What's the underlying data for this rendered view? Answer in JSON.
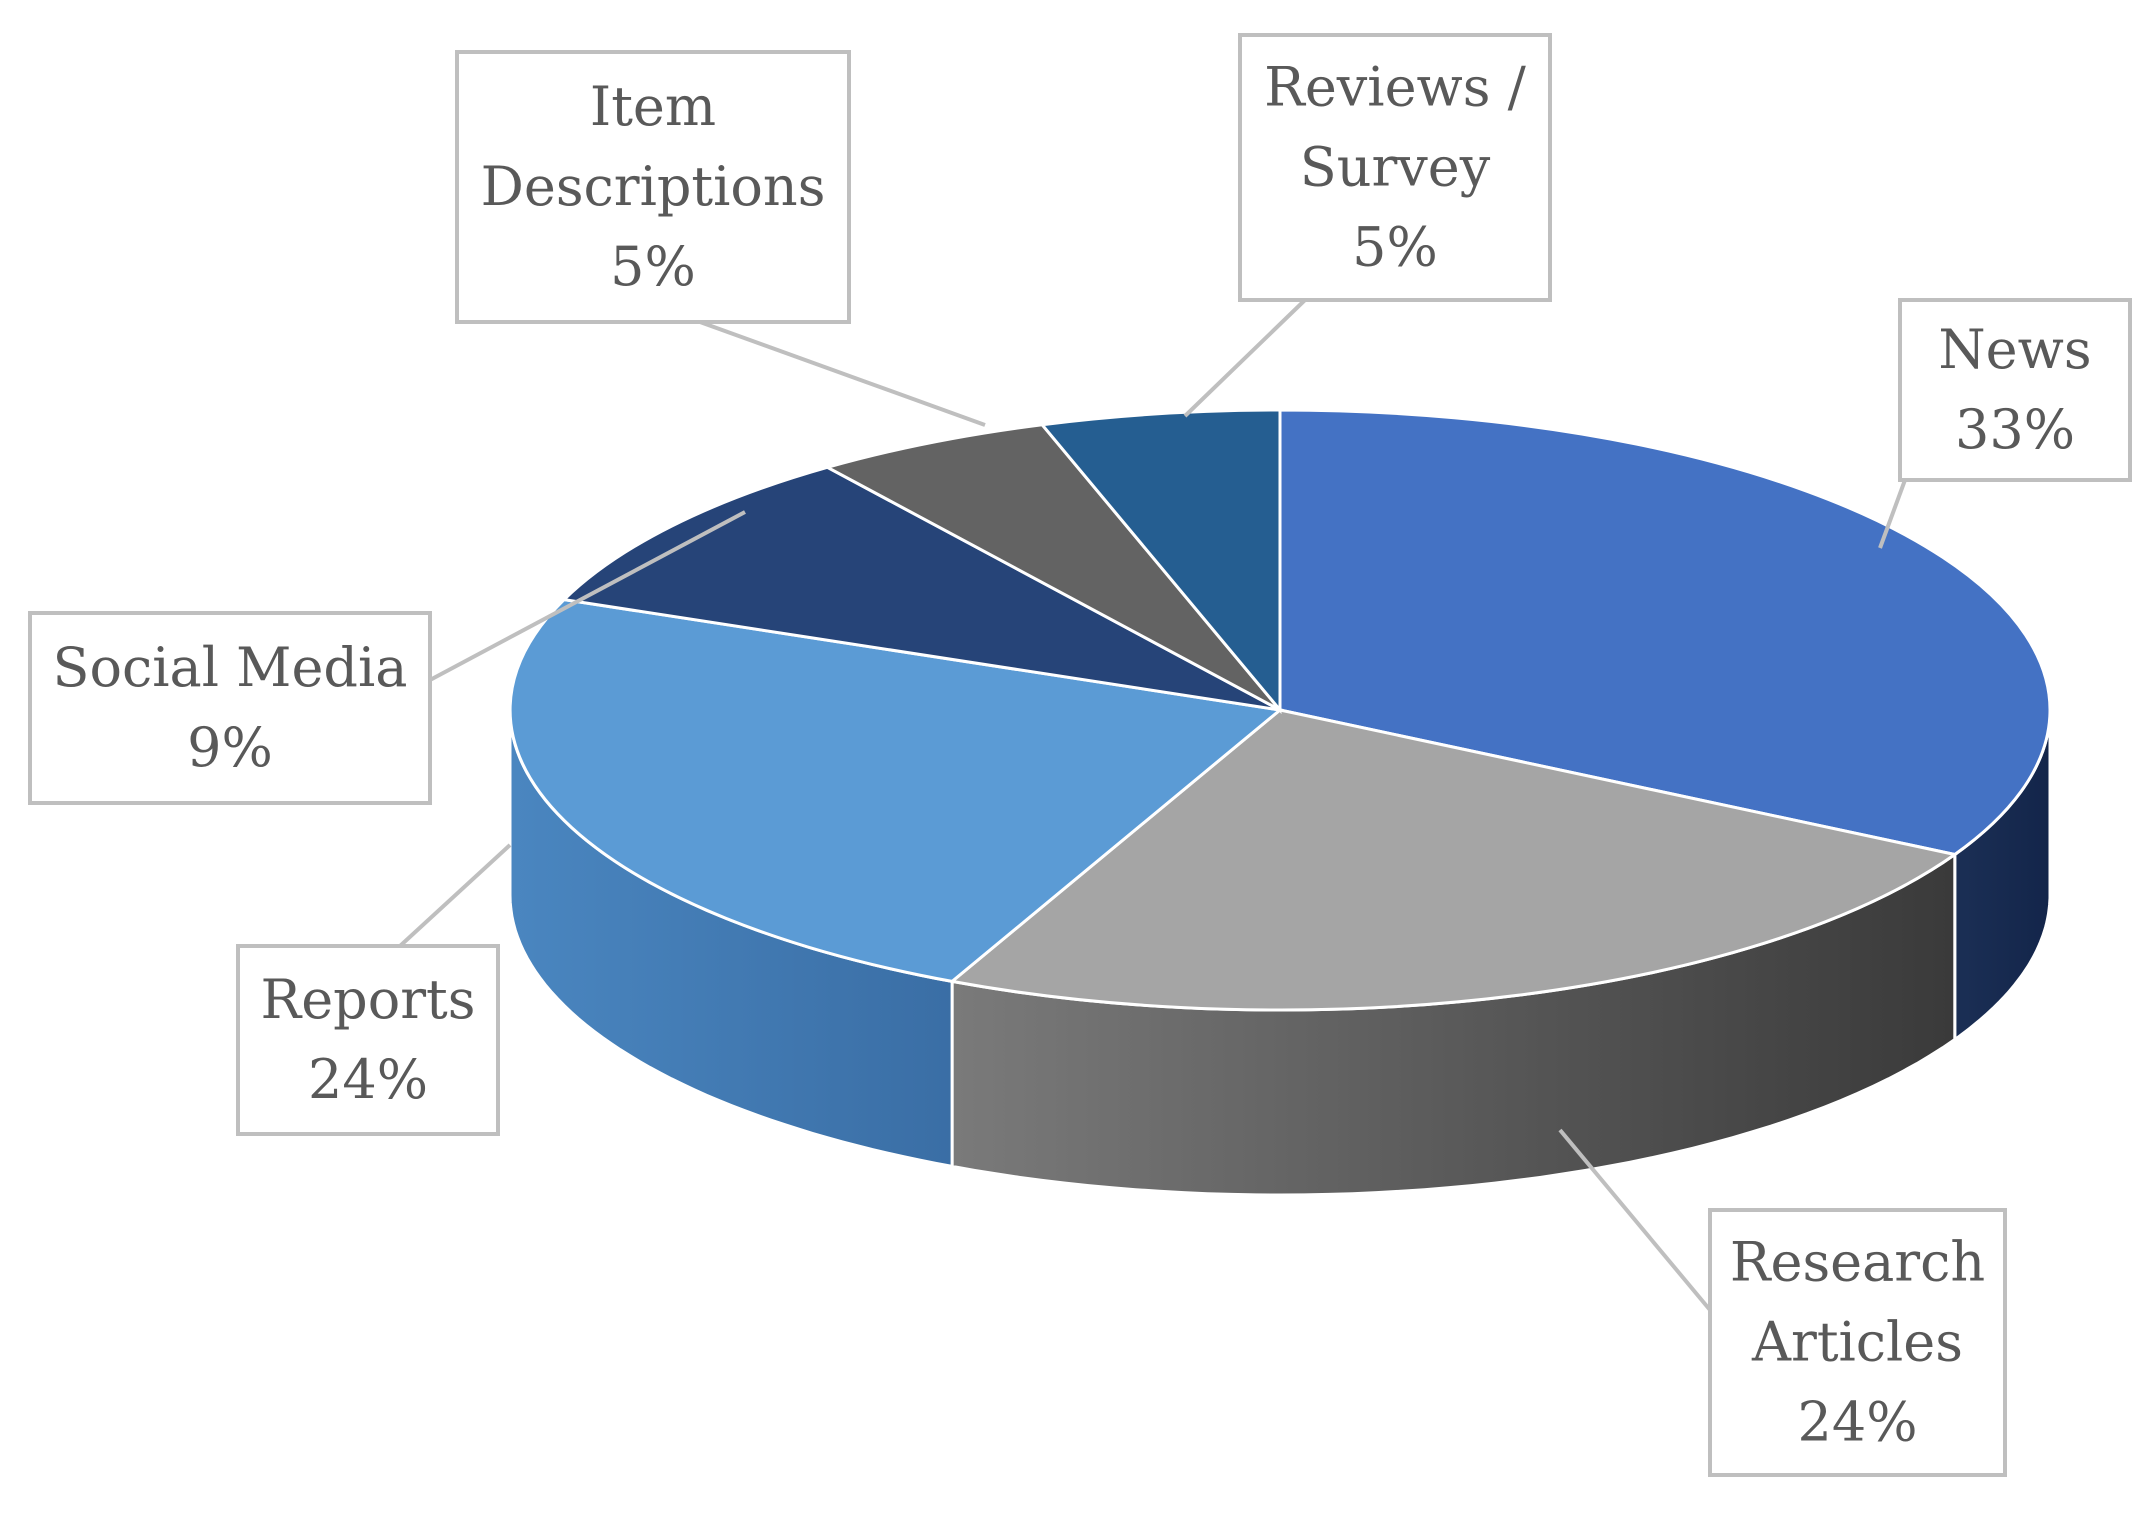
{
  "chart_data": {
    "type": "pie",
    "style": "3d-exploded-perspective",
    "categories": [
      "News",
      "Research Articles",
      "Reports",
      "Social Media",
      "Item Descriptions",
      "Reviews / Survey"
    ],
    "values": [
      33,
      24,
      24,
      9,
      5,
      5
    ],
    "value_labels": [
      "33%",
      "24%",
      "24%",
      "9%",
      "5%",
      "5%"
    ],
    "label_lines": [
      [
        "News"
      ],
      [
        "Research",
        "Articles"
      ],
      [
        "Reports"
      ],
      [
        "Social Media"
      ],
      [
        "Item",
        "Descriptions"
      ],
      [
        "Reviews /",
        "Survey"
      ]
    ],
    "colors": [
      "#4472C4",
      "#A5A5A5",
      "#5B9BD5",
      "#264478",
      "#636363",
      "#255E91"
    ],
    "legend": "none",
    "data_labels": "callouts"
  }
}
